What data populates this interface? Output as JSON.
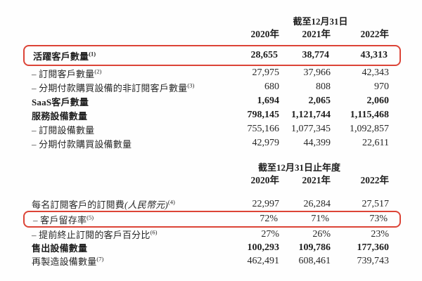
{
  "page": {
    "background": "#fefefe",
    "text_color": "#272727",
    "highlight_color": "#dc4437",
    "language": "zh-Hant"
  },
  "table1": {
    "period_header": "截至12月31日",
    "years": [
      "2020年",
      "2021年",
      "2022年"
    ],
    "rows": [
      {
        "label": "活躍客戶數量",
        "sup": "(1)",
        "values": [
          "28,655",
          "38,774",
          "43,313"
        ],
        "bold": true,
        "highlighted": true
      },
      {
        "label": "– 訂閱客戶數量",
        "sup": "(2)",
        "values": [
          "27,975",
          "37,966",
          "42,343"
        ],
        "bold": false,
        "highlighted": false
      },
      {
        "label": "– 分期付款購買設備的非訂閱客戶數量",
        "sup": "(3)",
        "values": [
          "680",
          "808",
          "970"
        ],
        "bold": false,
        "highlighted": false
      },
      {
        "label": "SaaS客戶數量",
        "values": [
          "1,694",
          "2,065",
          "2,060"
        ],
        "bold": true,
        "highlighted": false
      },
      {
        "label": "服務設備數量",
        "values": [
          "798,145",
          "1,121,744",
          "1,115,468"
        ],
        "bold": true,
        "highlighted": false
      },
      {
        "label": "– 訂閱設備數量",
        "values": [
          "755,166",
          "1,077,345",
          "1,092,857"
        ],
        "bold": false,
        "highlighted": false
      },
      {
        "label": "– 分期付款購買設備數量",
        "values": [
          "42,979",
          "44,399",
          "22,611"
        ],
        "bold": false,
        "highlighted": false
      }
    ]
  },
  "table2": {
    "period_header": "截至12月31日止年度",
    "years": [
      "2020年",
      "2021年",
      "2022年"
    ],
    "rows": [
      {
        "label": "每名訂閱客戶的訂閱費",
        "label_it": "(人民幣元)",
        "sup": "(4)",
        "values": [
          "22,997",
          "26,284",
          "27,517"
        ],
        "bold": false,
        "highlighted": false
      },
      {
        "label": "– 客戶留存率",
        "sup": "(5)",
        "values": [
          "72%",
          "71%",
          "73%"
        ],
        "bold": false,
        "highlighted": true
      },
      {
        "label": "– 提前終止訂閱的客戶百分比",
        "sup": "(6)",
        "values": [
          "27%",
          "26%",
          "23%"
        ],
        "bold": false,
        "highlighted": false
      },
      {
        "label": "售出設備數量",
        "values": [
          "100,293",
          "109,786",
          "177,360"
        ],
        "bold": true,
        "highlighted": false
      },
      {
        "label": "再製造設備數量",
        "sup": "(7)",
        "values": [
          "462,491",
          "608,461",
          "739,743"
        ],
        "bold": false,
        "highlighted": false
      }
    ]
  }
}
